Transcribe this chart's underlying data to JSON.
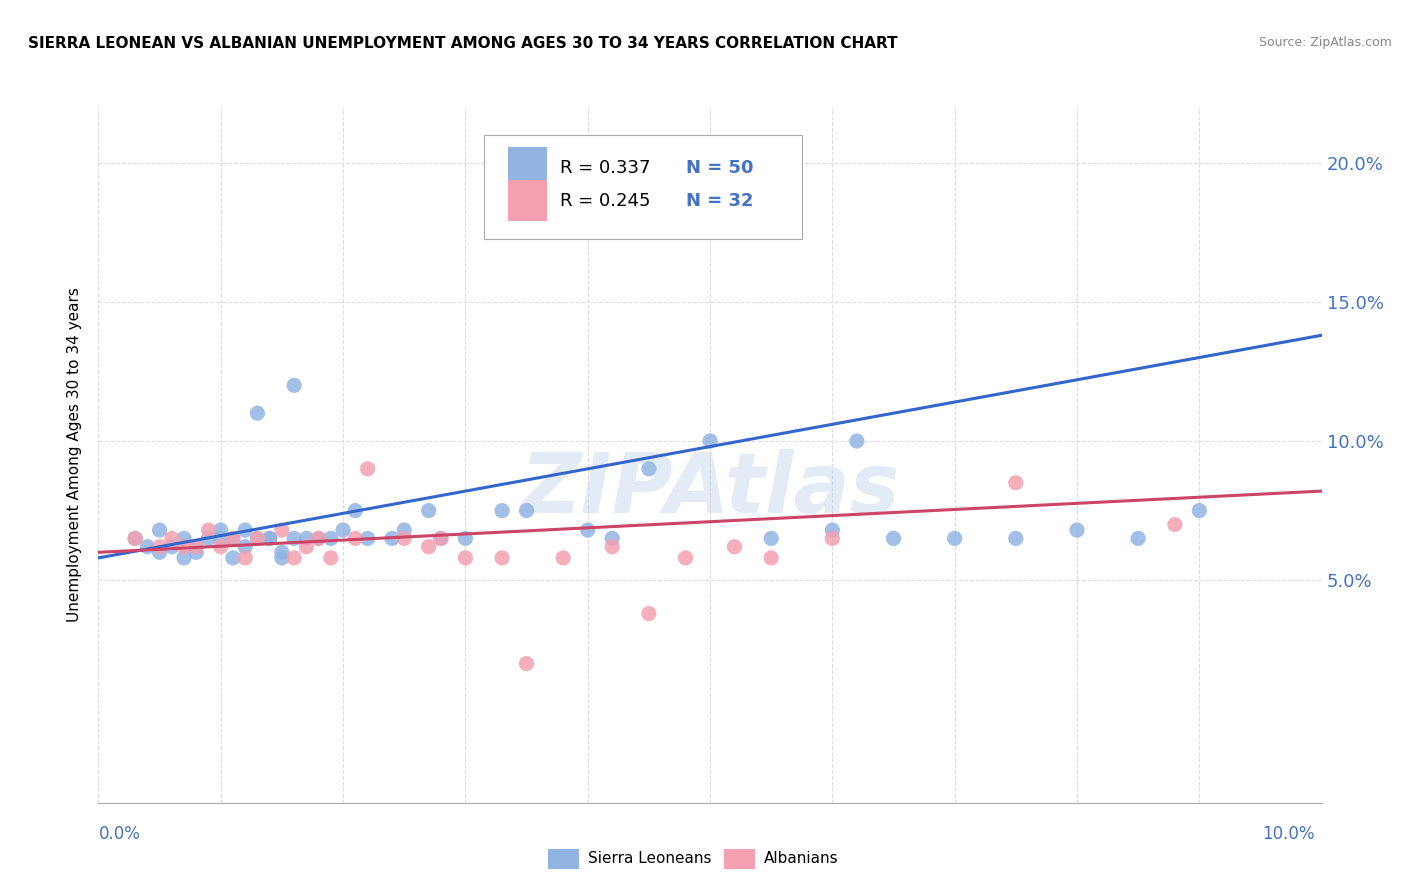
{
  "title": "SIERRA LEONEAN VS ALBANIAN UNEMPLOYMENT AMONG AGES 30 TO 34 YEARS CORRELATION CHART",
  "source": "Source: ZipAtlas.com",
  "ylabel": "Unemployment Among Ages 30 to 34 years",
  "x_tick_labels_bottom": [
    "0.0%",
    "10.0%"
  ],
  "y_tick_labels": [
    "5.0%",
    "10.0%",
    "15.0%",
    "20.0%"
  ],
  "y_ticks": [
    0.05,
    0.1,
    0.15,
    0.2
  ],
  "x_range": [
    0.0,
    0.1
  ],
  "y_range": [
    -0.03,
    0.22
  ],
  "sierra_leone_color": "#92B4E3",
  "albanian_color": "#F4A0B0",
  "trend_line_color_sl": "#3366CC",
  "trend_line_color_al": "#CC4466",
  "watermark_color": "#C8D8F0",
  "legend_R_sl": "R = 0.337",
  "legend_N_sl": "N = 50",
  "legend_R_al": "R = 0.245",
  "legend_N_al": "N = 32",
  "sierra_leoneans_label": "Sierra Leoneans",
  "albanians_label": "Albanians",
  "sl_x": [
    0.003,
    0.004,
    0.005,
    0.005,
    0.006,
    0.007,
    0.007,
    0.008,
    0.008,
    0.009,
    0.01,
    0.01,
    0.011,
    0.011,
    0.012,
    0.012,
    0.013,
    0.013,
    0.014,
    0.014,
    0.015,
    0.015,
    0.016,
    0.016,
    0.017,
    0.018,
    0.019,
    0.02,
    0.021,
    0.022,
    0.024,
    0.025,
    0.027,
    0.028,
    0.03,
    0.033,
    0.035,
    0.04,
    0.042,
    0.045,
    0.05,
    0.055,
    0.06,
    0.062,
    0.065,
    0.07,
    0.075,
    0.08,
    0.085,
    0.09
  ],
  "sl_y": [
    0.065,
    0.062,
    0.06,
    0.068,
    0.062,
    0.058,
    0.065,
    0.06,
    0.062,
    0.065,
    0.068,
    0.065,
    0.065,
    0.058,
    0.062,
    0.068,
    0.065,
    0.11,
    0.065,
    0.065,
    0.058,
    0.06,
    0.065,
    0.12,
    0.065,
    0.065,
    0.065,
    0.068,
    0.075,
    0.065,
    0.065,
    0.068,
    0.075,
    0.065,
    0.065,
    0.075,
    0.075,
    0.068,
    0.065,
    0.09,
    0.1,
    0.065,
    0.068,
    0.1,
    0.065,
    0.065,
    0.065,
    0.068,
    0.065,
    0.075
  ],
  "al_x": [
    0.003,
    0.005,
    0.006,
    0.007,
    0.008,
    0.009,
    0.01,
    0.011,
    0.012,
    0.013,
    0.015,
    0.016,
    0.017,
    0.018,
    0.019,
    0.021,
    0.022,
    0.025,
    0.027,
    0.028,
    0.03,
    0.033,
    0.035,
    0.038,
    0.042,
    0.045,
    0.048,
    0.052,
    0.055,
    0.06,
    0.075,
    0.088
  ],
  "al_y": [
    0.065,
    0.062,
    0.065,
    0.062,
    0.062,
    0.068,
    0.062,
    0.065,
    0.058,
    0.065,
    0.068,
    0.058,
    0.062,
    0.065,
    0.058,
    0.065,
    0.09,
    0.065,
    0.062,
    0.065,
    0.058,
    0.058,
    0.02,
    0.058,
    0.062,
    0.038,
    0.058,
    0.062,
    0.058,
    0.065,
    0.085,
    0.07
  ]
}
